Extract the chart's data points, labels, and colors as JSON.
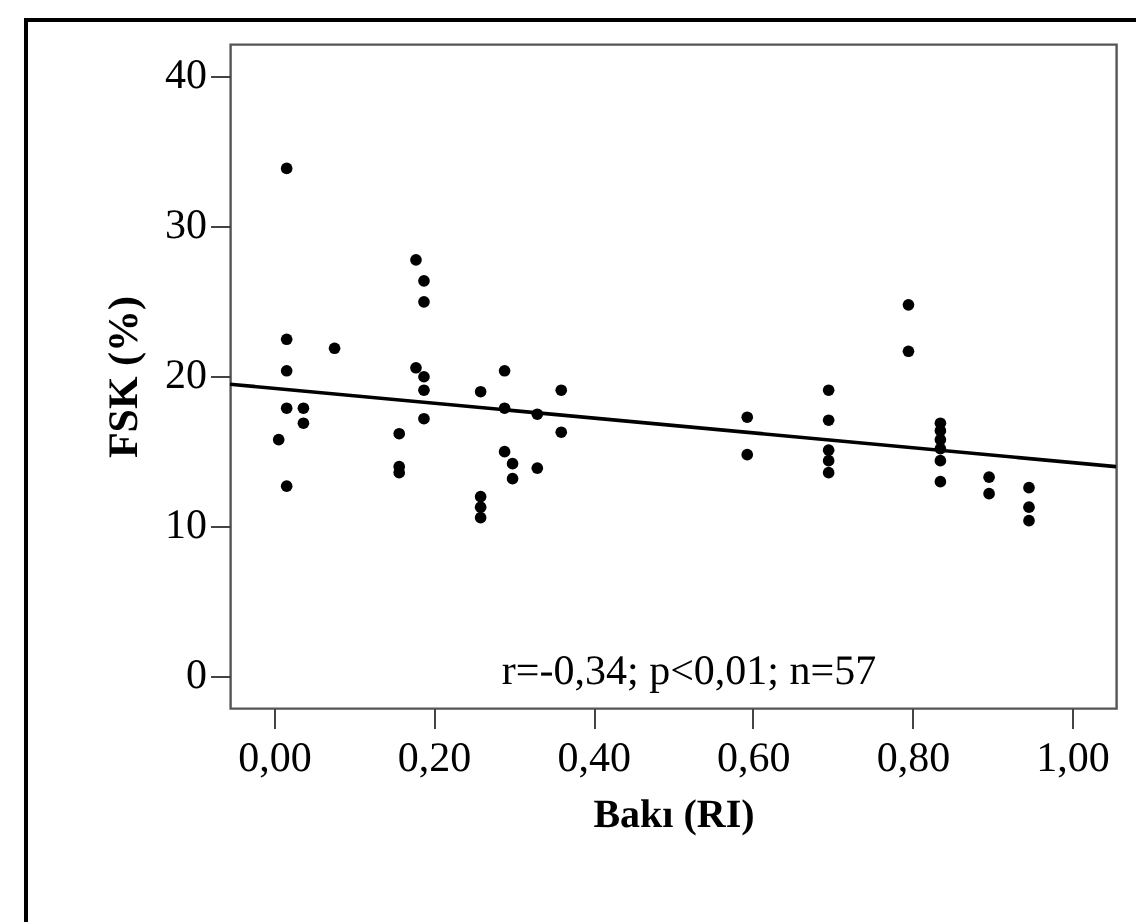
{
  "chart_data": {
    "type": "scatter",
    "xlabel": "Bakı (RI)",
    "ylabel": "FSK (%)",
    "annotations": [
      "r=-0,34; p<0,01; n=57"
    ],
    "xlim": [
      -0.055,
      1.055
    ],
    "ylim": [
      -2.2,
      42.1
    ],
    "xticks": [
      {
        "value": 0,
        "label": "0,00"
      },
      {
        "value": 0.2,
        "label": "0,20"
      },
      {
        "value": 0.4,
        "label": "0,40"
      },
      {
        "value": 0.6,
        "label": "0,60"
      },
      {
        "value": 0.8,
        "label": "0,80"
      },
      {
        "value": 1,
        "label": "1,00"
      }
    ],
    "yticks": [
      0,
      10,
      20,
      30,
      40
    ],
    "grid": false,
    "series": [
      {
        "marker": "circle",
        "color": "#000000",
        "x": [
          0.016,
          0.016,
          0.016,
          0.016,
          0.037,
          0.037,
          0.006,
          0.016,
          0.076,
          0.178,
          0.188,
          0.188,
          0.178,
          0.188,
          0.188,
          0.188,
          0.157,
          0.157,
          0.157,
          0.259,
          0.259,
          0.259,
          0.259,
          0.289,
          0.289,
          0.289,
          0.299,
          0.299,
          0.33,
          0.33,
          0.36,
          0.36,
          0.593,
          0.593,
          0.695,
          0.695,
          0.695,
          0.695,
          0.695,
          0.795,
          0.795,
          0.835,
          0.835,
          0.835,
          0.835,
          0.835,
          0.835,
          0.896,
          0.896,
          0.946,
          0.946,
          0.946
        ],
        "values": [
          33.8,
          22.4,
          20.3,
          17.8,
          17.8,
          16.8,
          15.7,
          12.6,
          21.8,
          27.7,
          26.3,
          24.9,
          20.5,
          19.9,
          19.0,
          17.1,
          16.1,
          13.9,
          13.5,
          18.9,
          11.9,
          11.2,
          10.5,
          20.3,
          17.8,
          14.9,
          14.1,
          13.1,
          17.4,
          13.8,
          19.0,
          16.2,
          17.2,
          14.7,
          19.0,
          17.0,
          15.0,
          14.3,
          13.5,
          24.7,
          21.6,
          16.8,
          16.3,
          15.7,
          15.1,
          14.3,
          12.9,
          13.2,
          12.1,
          12.5,
          11.2,
          10.3
        ]
      },
      {
        "type": "line",
        "color": "#000000",
        "x": [
          -0.055,
          1.055
        ],
        "values": [
          19.4,
          13.9
        ]
      }
    ]
  }
}
